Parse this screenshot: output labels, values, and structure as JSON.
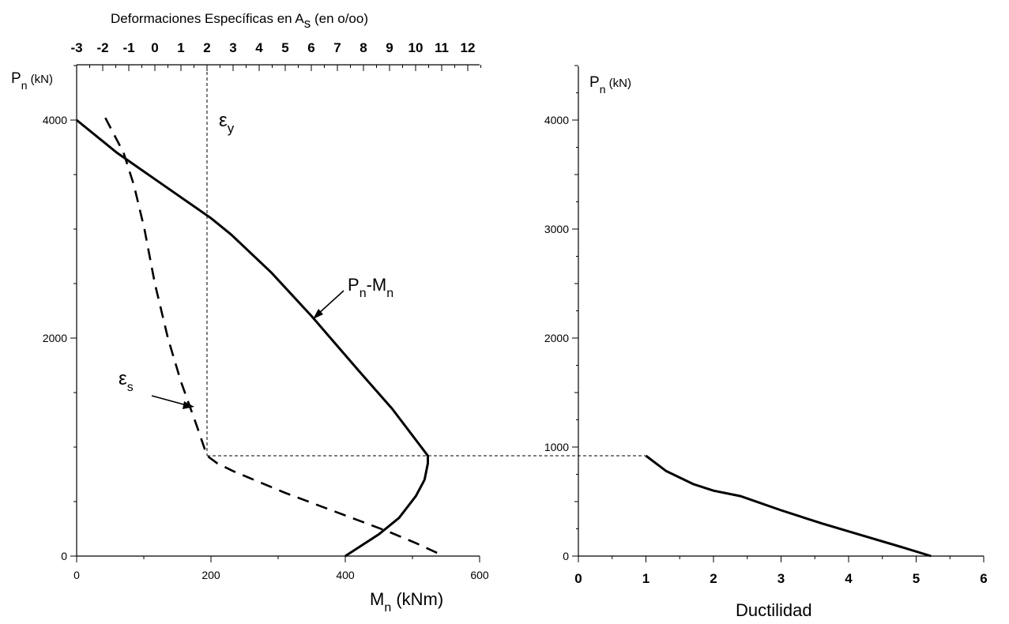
{
  "chart_data": [
    {
      "type": "line",
      "panel": "left",
      "xlabel": "M",
      "xlabel_sub": "n",
      "xlabel_units": " (kNm)",
      "ylabel": "P",
      "ylabel_sub": "n",
      "ylabel_units": " (kN)",
      "xlim": [
        0,
        600
      ],
      "ylim": [
        0,
        4500
      ],
      "x_ticks": [
        "0",
        "200",
        "400",
        "600"
      ],
      "y_ticks": [
        "0",
        "2000",
        "4000"
      ],
      "top_axis": {
        "label_main": "Deformaciones Específicas en A",
        "label_sub": "s",
        "label_units": " (en o/oo)",
        "range": [
          -3,
          12.8
        ],
        "ticks": [
          "-3",
          "-2",
          "-1",
          "0",
          "1",
          "2",
          "3",
          "4",
          "5",
          "6",
          "7",
          "8",
          "9",
          "10",
          "11",
          "12"
        ]
      },
      "series": [
        {
          "name": "Pn-Mn",
          "style": "solid",
          "axis": "bottom",
          "x": [
            0,
            60,
            130,
            200,
            230,
            290,
            350,
            420,
            470,
            523,
            523,
            518,
            505,
            480,
            450,
            400
          ],
          "y": [
            4000,
            3700,
            3400,
            3100,
            2950,
            2600,
            2200,
            1700,
            1350,
            920,
            850,
            700,
            550,
            350,
            200,
            0
          ]
        },
        {
          "name": "εs",
          "style": "dashed",
          "axis": "top",
          "x": [
            -1.9,
            -1.2,
            -0.8,
            -0.4,
            0,
            0.5,
            1,
            1.6,
            2.0,
            2.4,
            3,
            4,
            5,
            6,
            7,
            8,
            9,
            10,
            11
          ],
          "y": [
            4020,
            3700,
            3400,
            3000,
            2500,
            2000,
            1600,
            1200,
            920,
            850,
            780,
            680,
            580,
            490,
            400,
            310,
            220,
            120,
            10
          ]
        }
      ],
      "annotations": [
        {
          "label_main": "P",
          "label_sub": "n",
          "label_rest": "-M",
          "label_rest_sub": "n"
        },
        {
          "label_main": "ε",
          "label_sub": "s"
        },
        {
          "label_main": "ε",
          "label_sub": "y",
          "at_strain": 2.0
        }
      ],
      "reference_lines": {
        "vertical_strain": 2.0,
        "horizontal_P": 920
      }
    },
    {
      "type": "line",
      "panel": "right",
      "xlabel": "Ductilidad",
      "ylabel": "P",
      "ylabel_sub": "n",
      "ylabel_units": " (kN)",
      "xlim": [
        0,
        6
      ],
      "ylim": [
        0,
        4500
      ],
      "x_ticks": [
        "0",
        "1",
        "2",
        "3",
        "4",
        "5",
        "6"
      ],
      "y_ticks": [
        "0",
        "1000",
        "2000",
        "3000",
        "4000"
      ],
      "series": [
        {
          "name": "Ductilidad",
          "style": "solid",
          "x": [
            1.0,
            1.3,
            1.7,
            2.0,
            2.4,
            3.0,
            3.6,
            4.2,
            4.8,
            5.22
          ],
          "y": [
            920,
            780,
            660,
            600,
            550,
            420,
            300,
            190,
            80,
            0
          ]
        }
      ]
    }
  ]
}
